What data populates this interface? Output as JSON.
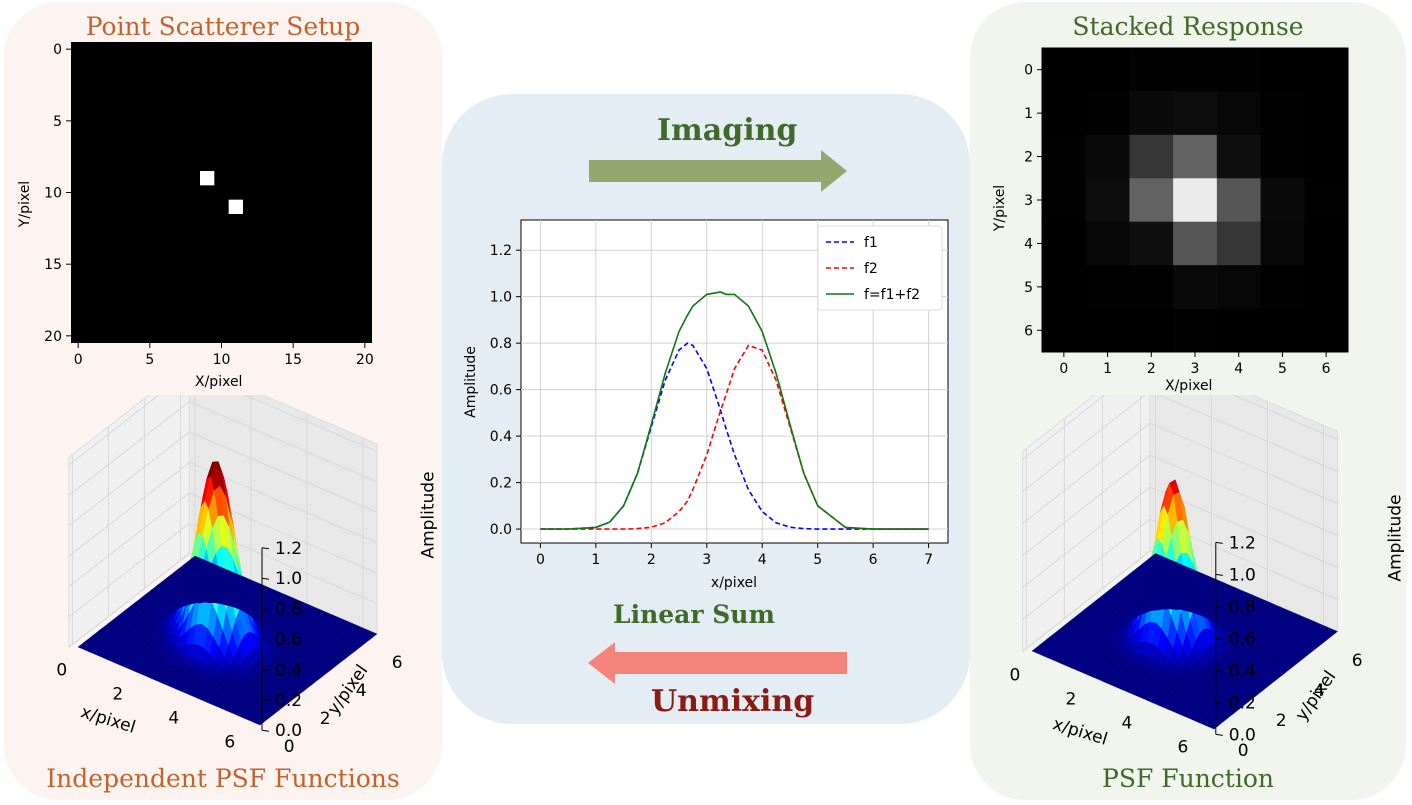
{
  "left": {
    "title": "Point Scatterer Setup",
    "caption": "Independent PSF Functions",
    "heatmap": {
      "xlabel": "X/pixel",
      "ylabel": "Y/pixel",
      "xticks": [
        "0",
        "5",
        "10",
        "15",
        "20"
      ],
      "yticks": [
        "0",
        "5",
        "10",
        "15",
        "20"
      ],
      "points": [
        [
          9,
          9
        ],
        [
          11,
          11
        ]
      ],
      "range": [
        -0.5,
        20.5
      ]
    },
    "surface": {
      "zlabel": "Amplitude",
      "xlabel": "x/pixel",
      "ylabel": "y/pixel",
      "zticks": [
        "0.0",
        "0.2",
        "0.4",
        "0.6",
        "0.8",
        "1.0",
        "1.2"
      ],
      "xticks": [
        "0",
        "2",
        "4",
        "6"
      ],
      "yticks": [
        "0",
        "2",
        "4",
        "6"
      ],
      "peaks": 2
    }
  },
  "middle": {
    "imaging_label": "Imaging",
    "linear_sum_label": "Linear Sum",
    "unmixing_label": "Unmixing",
    "imaging_arrow_color": "#93a86f",
    "unmixing_arrow_color": "#f4847c"
  },
  "right": {
    "title": "Stacked Response",
    "caption": "PSF Function",
    "heatmap": {
      "xlabel": "X/pixel",
      "ylabel": "Y/pixel",
      "xticks": [
        "0",
        "1",
        "2",
        "3",
        "4",
        "5",
        "6"
      ],
      "yticks": [
        "0",
        "1",
        "2",
        "3",
        "4",
        "5",
        "6"
      ],
      "cells": [
        [
          0.0,
          0.0,
          0.01,
          0.01,
          0.01,
          0.0,
          0.0
        ],
        [
          0.0,
          0.01,
          0.04,
          0.05,
          0.03,
          0.01,
          0.0
        ],
        [
          0.01,
          0.04,
          0.22,
          0.4,
          0.06,
          0.01,
          0.0
        ],
        [
          0.01,
          0.05,
          0.4,
          0.96,
          0.35,
          0.04,
          0.01
        ],
        [
          0.0,
          0.03,
          0.06,
          0.35,
          0.22,
          0.03,
          0.0
        ],
        [
          0.0,
          0.01,
          0.01,
          0.04,
          0.03,
          0.01,
          0.0
        ],
        [
          0.0,
          0.0,
          0.0,
          0.01,
          0.0,
          0.0,
          0.0
        ]
      ]
    },
    "surface": {
      "zlabel": "Amplitude",
      "xlabel": "x/pixel",
      "ylabel": "y/pixel",
      "zticks": [
        "0.0",
        "0.2",
        "0.4",
        "0.6",
        "0.8",
        "1.0",
        "1.2"
      ],
      "xticks": [
        "0",
        "2",
        "4",
        "6"
      ],
      "yticks": [
        "0",
        "2",
        "4",
        "6"
      ],
      "peaks": 1
    }
  },
  "chart_data": {
    "type": "line",
    "xlabel": "x/pixel",
    "ylabel": "Amplitude",
    "xlim": [
      -0.35,
      7.35
    ],
    "ylim": [
      -0.06,
      1.33
    ],
    "xticks": [
      0,
      1,
      2,
      3,
      4,
      5,
      6,
      7
    ],
    "yticks": [
      0.0,
      0.2,
      0.4,
      0.6,
      0.8,
      1.0,
      1.2
    ],
    "grid": true,
    "legend_position": "top-right",
    "x": [
      0,
      0.5,
      1,
      1.25,
      1.5,
      1.75,
      2,
      2.25,
      2.5,
      2.65,
      2.75,
      3,
      3.25,
      3.35,
      3.5,
      3.75,
      4,
      4.25,
      4.5,
      4.75,
      5,
      5.5,
      6,
      7
    ],
    "series": [
      {
        "name": "f1",
        "color": "#0000ff",
        "dash": true,
        "values": [
          0,
          0,
          0.007,
          0.03,
          0.1,
          0.24,
          0.44,
          0.64,
          0.77,
          0.8,
          0.79,
          0.69,
          0.51,
          0.43,
          0.32,
          0.17,
          0.075,
          0.027,
          0.008,
          0.002,
          0,
          0,
          0,
          0
        ]
      },
      {
        "name": "f2",
        "color": "#ff0000",
        "dash": true,
        "values": [
          0,
          0,
          0,
          0,
          0,
          0.002,
          0.008,
          0.027,
          0.075,
          0.12,
          0.17,
          0.32,
          0.51,
          0.58,
          0.69,
          0.79,
          0.77,
          0.64,
          0.44,
          0.24,
          0.1,
          0.007,
          0,
          0
        ]
      },
      {
        "name": "f=f1+f2",
        "color": "#117711",
        "dash": false,
        "values": [
          0,
          0,
          0.007,
          0.03,
          0.1,
          0.24,
          0.45,
          0.67,
          0.85,
          0.92,
          0.96,
          1.01,
          1.02,
          1.01,
          1.01,
          0.96,
          0.85,
          0.67,
          0.45,
          0.24,
          0.1,
          0.007,
          0,
          0
        ]
      }
    ]
  }
}
